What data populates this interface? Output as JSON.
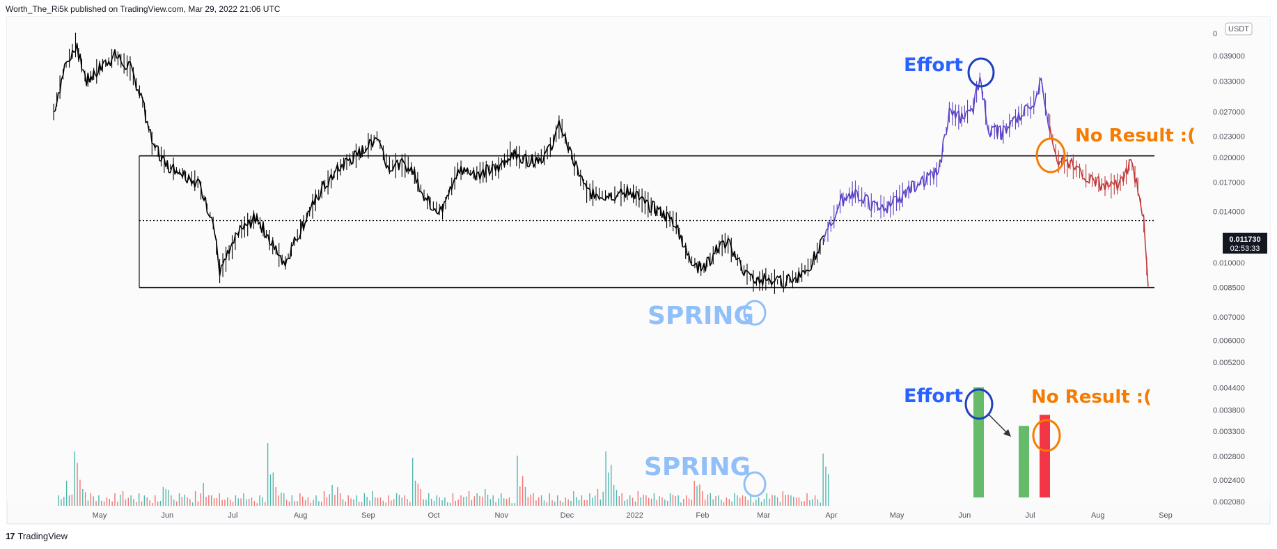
{
  "header": {
    "publish_line": "Worth_The_Ri5k published on TradingView.com, Mar 29, 2022 21:06 UTC"
  },
  "footer": {
    "brand_mark": "17",
    "brand": "TradingView"
  },
  "price_axis": {
    "currency_badge": "USDT",
    "top_label": "0",
    "current_price": "0.011730",
    "countdown": "02:53:33"
  },
  "colors": {
    "history_candles": "#000000",
    "projection_up": "#5b3fc4",
    "projection_down": "#c0393b",
    "annotation_blue": "#2962ff",
    "annotation_orange": "#f57c00",
    "annotation_light_blue": "#90bff9",
    "volume_up": "#26a69a",
    "volume_down": "#ef5350",
    "proj_volume_up": "#66bb6a",
    "proj_volume_down": "#f23645"
  },
  "annotations": {
    "price": {
      "effort": "Effort",
      "no_result": "No Result :(",
      "spring": "SPRING"
    },
    "volume": {
      "effort": "Effort",
      "no_result": "No Result :(",
      "spring": "SPRING"
    }
  },
  "chart_data": {
    "type": "candlestick",
    "title": "",
    "xlabel": "",
    "ylabel": "",
    "y_scale": "log",
    "ylim": [
      0.0018,
      0.05
    ],
    "y_ticks": [
      "0.039000",
      "0.033000",
      "0.027000",
      "0.023000",
      "0.020000",
      "0.017000",
      "0.014000",
      "0.010000",
      "0.008500",
      "0.007000",
      "0.006000",
      "0.005200",
      "0.004400",
      "0.003800",
      "0.003300",
      "0.002800",
      "0.002400",
      "0.002080"
    ],
    "x_ticks": [
      "May",
      "Jun",
      "Jul",
      "Aug",
      "Sep",
      "Oct",
      "Nov",
      "Dec",
      "2022",
      "Feb",
      "Mar",
      "Apr",
      "May",
      "Jun",
      "Jul",
      "Aug",
      "Sep"
    ],
    "horizontal_levels": [
      {
        "price": 0.0202,
        "style": "solid"
      },
      {
        "price": 0.0132,
        "style": "dotted"
      },
      {
        "price": 0.0085,
        "style": "solid"
      }
    ],
    "price_path_history": [
      [
        "2021-04-10",
        0.027
      ],
      [
        "2021-04-15",
        0.036
      ],
      [
        "2021-04-20",
        0.042
      ],
      [
        "2021-04-25",
        0.033
      ],
      [
        "2021-05-01",
        0.036
      ],
      [
        "2021-05-08",
        0.039
      ],
      [
        "2021-05-15",
        0.036
      ],
      [
        "2021-05-20",
        0.03
      ],
      [
        "2021-05-25",
        0.022
      ],
      [
        "2021-06-01",
        0.019
      ],
      [
        "2021-06-08",
        0.018
      ],
      [
        "2021-06-15",
        0.017
      ],
      [
        "2021-06-22",
        0.013
      ],
      [
        "2021-06-25",
        0.0095
      ],
      [
        "2021-07-05",
        0.0125
      ],
      [
        "2021-07-12",
        0.0135
      ],
      [
        "2021-07-20",
        0.011
      ],
      [
        "2021-07-25",
        0.01
      ],
      [
        "2021-08-01",
        0.0125
      ],
      [
        "2021-08-10",
        0.016
      ],
      [
        "2021-08-20",
        0.019
      ],
      [
        "2021-08-30",
        0.021
      ],
      [
        "2021-09-05",
        0.023
      ],
      [
        "2021-09-10",
        0.019
      ],
      [
        "2021-09-20",
        0.019
      ],
      [
        "2021-09-28",
        0.015
      ],
      [
        "2021-10-05",
        0.014
      ],
      [
        "2021-10-12",
        0.0185
      ],
      [
        "2021-10-20",
        0.018
      ],
      [
        "2021-10-30",
        0.0185
      ],
      [
        "2021-11-05",
        0.0205
      ],
      [
        "2021-11-15",
        0.0195
      ],
      [
        "2021-11-22",
        0.0205
      ],
      [
        "2021-11-28",
        0.025
      ],
      [
        "2021-12-03",
        0.02
      ],
      [
        "2021-12-10",
        0.016
      ],
      [
        "2021-12-20",
        0.0155
      ],
      [
        "2021-12-30",
        0.016
      ],
      [
        "2022-01-05",
        0.015
      ],
      [
        "2022-01-12",
        0.014
      ],
      [
        "2022-01-20",
        0.013
      ],
      [
        "2022-01-25",
        0.0105
      ],
      [
        "2022-02-01",
        0.0095
      ],
      [
        "2022-02-08",
        0.011
      ],
      [
        "2022-02-12",
        0.0115
      ],
      [
        "2022-02-20",
        0.0095
      ],
      [
        "2022-02-25",
        0.0088
      ],
      [
        "2022-03-02",
        0.009
      ],
      [
        "2022-03-08",
        0.0088
      ],
      [
        "2022-03-15",
        0.009
      ],
      [
        "2022-03-22",
        0.0098
      ],
      [
        "2022-03-29",
        0.0117
      ]
    ],
    "price_path_projection_up": [
      [
        "2022-03-29",
        0.0117
      ],
      [
        "2022-04-05",
        0.015
      ],
      [
        "2022-04-12",
        0.016
      ],
      [
        "2022-04-20",
        0.0145
      ],
      [
        "2022-04-28",
        0.0145
      ],
      [
        "2022-05-05",
        0.016
      ],
      [
        "2022-05-12",
        0.017
      ],
      [
        "2022-05-20",
        0.018
      ],
      [
        "2022-05-25",
        0.027
      ],
      [
        "2022-05-30",
        0.026
      ],
      [
        "2022-06-05",
        0.028
      ],
      [
        "2022-06-08",
        0.034
      ],
      [
        "2022-06-12",
        0.024
      ],
      [
        "2022-06-18",
        0.0235
      ],
      [
        "2022-06-25",
        0.026
      ],
      [
        "2022-07-02",
        0.028
      ],
      [
        "2022-07-06",
        0.033
      ],
      [
        "2022-07-10",
        0.0245
      ]
    ],
    "price_path_projection_down": [
      [
        "2022-07-10",
        0.0245
      ],
      [
        "2022-07-14",
        0.0195
      ],
      [
        "2022-07-20",
        0.019
      ],
      [
        "2022-07-28",
        0.0175
      ],
      [
        "2022-08-05",
        0.0165
      ],
      [
        "2022-08-12",
        0.017
      ],
      [
        "2022-08-16",
        0.0195
      ],
      [
        "2022-08-20",
        0.016
      ],
      [
        "2022-08-22",
        0.013
      ],
      [
        "2022-08-24",
        0.0085
      ]
    ],
    "volume_history": [
      0.5,
      1.2,
      2.6,
      0.8,
      0.6,
      0.5,
      0.4,
      0.6,
      0.7,
      0.5,
      0.6,
      0.4,
      0.5,
      0.9,
      0.5,
      0.6,
      0.4,
      0.7,
      1.1,
      0.5,
      0.6,
      0.4,
      0.5,
      0.6,
      0.4,
      0.5,
      3.0,
      0.9,
      0.6,
      0.5,
      0.6,
      0.4,
      0.5,
      0.7,
      1.0,
      0.6,
      0.5,
      0.5,
      0.6,
      0.7,
      0.4,
      0.5,
      0.6,
      0.5,
      2.3,
      0.8,
      0.6,
      0.5,
      0.4,
      0.6,
      0.5,
      0.7,
      0.6,
      0.8,
      0.5,
      0.6,
      0.4,
      2.4,
      0.9,
      0.6,
      0.5,
      0.6,
      0.5,
      0.4,
      0.7,
      0.5,
      0.6,
      0.8,
      2.6,
      1.0,
      0.6,
      0.5,
      0.7,
      0.5,
      0.6,
      0.4,
      0.6,
      0.5,
      0.5,
      1.2,
      0.7,
      0.6,
      0.5,
      0.4,
      0.6,
      0.5,
      0.5,
      0.4,
      0.6,
      0.5,
      0.7,
      0.5,
      0.4,
      0.6,
      0.5,
      2.5
    ],
    "projection_volume": [
      {
        "label": "effort",
        "value": 4.0,
        "color": "up"
      },
      {
        "label": "middle",
        "value": 2.6,
        "color": "up"
      },
      {
        "label": "no_result",
        "value": 3.0,
        "color": "down"
      }
    ]
  }
}
